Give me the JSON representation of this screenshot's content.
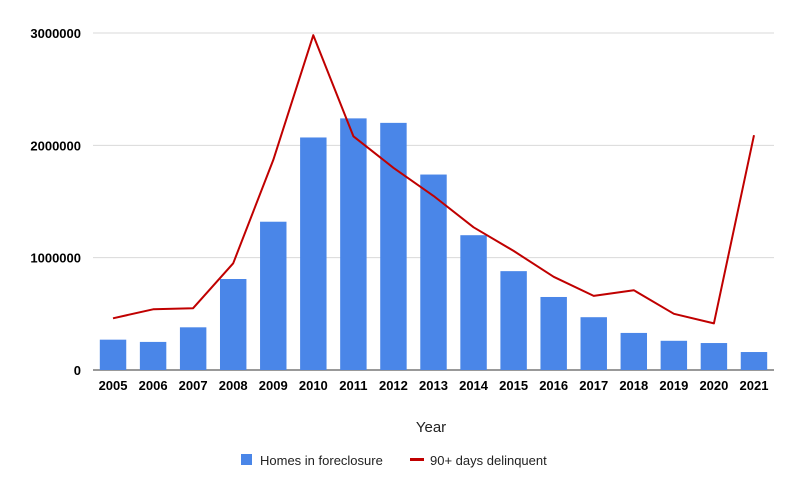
{
  "chart_data": {
    "type": "bar",
    "title": "",
    "xlabel": "Year",
    "ylabel": "",
    "ylim": [
      0,
      3000000
    ],
    "yticks": [
      0,
      1000000,
      2000000,
      3000000
    ],
    "ytick_labels": [
      "0",
      "1000000",
      "2000000",
      "3000000"
    ],
    "grid": true,
    "legend_position": "bottom",
    "categories": [
      "2005",
      "2006",
      "2007",
      "2008",
      "2009",
      "2010",
      "2011",
      "2012",
      "2013",
      "2014",
      "2015",
      "2016",
      "2017",
      "2018",
      "2019",
      "2020",
      "2021"
    ],
    "series": [
      {
        "name": "Homes in foreclosure",
        "type": "bar",
        "color": "#4a86e8",
        "values": [
          270000,
          250000,
          380000,
          810000,
          1320000,
          2070000,
          2240000,
          2200000,
          1740000,
          1200000,
          880000,
          650000,
          470000,
          330000,
          260000,
          240000,
          160000
        ]
      },
      {
        "name": "90+ days delinquent",
        "type": "line",
        "color": "#c00000",
        "values": [
          460000,
          540000,
          550000,
          950000,
          1870000,
          2980000,
          2080000,
          1800000,
          1550000,
          1270000,
          1060000,
          830000,
          660000,
          710000,
          500000,
          415000,
          2090000
        ]
      }
    ]
  }
}
